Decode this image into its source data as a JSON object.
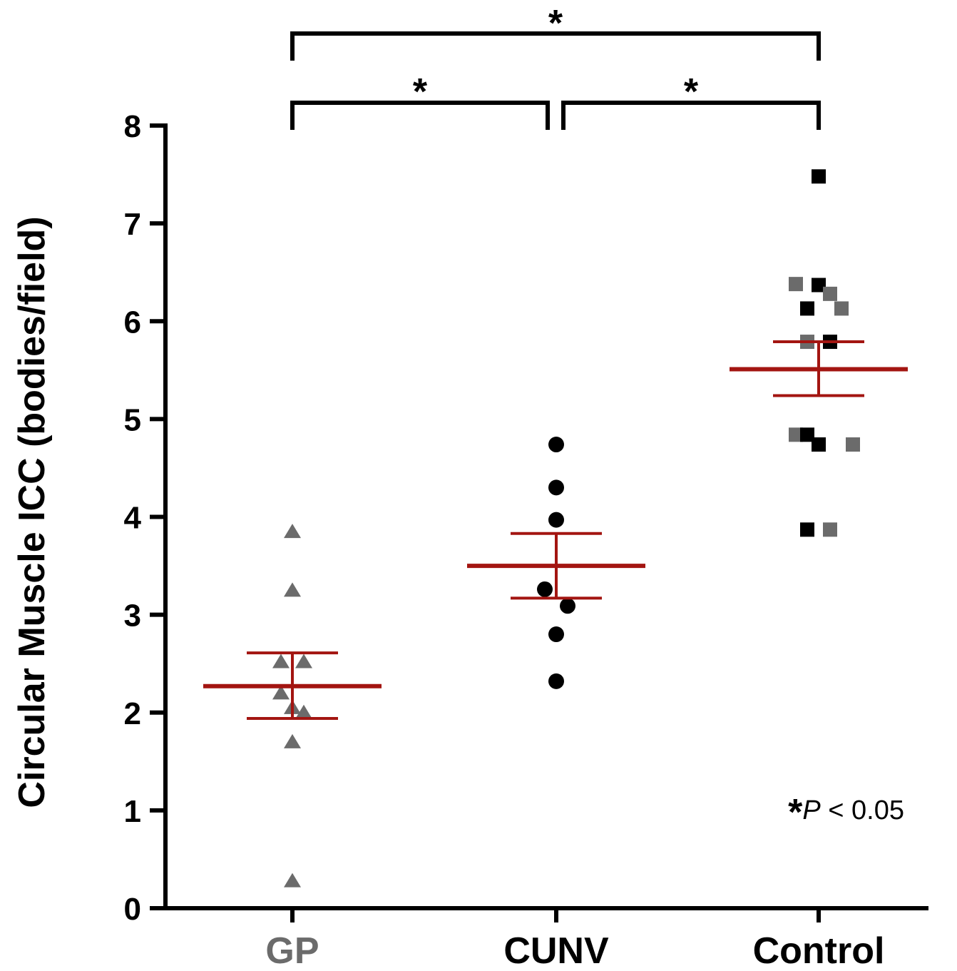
{
  "chart_data": {
    "type": "scatter",
    "ylabel": "Circular Muscle ICC (bodies/field)",
    "ylim": [
      0,
      8
    ],
    "yticks": [
      "0",
      "1",
      "2",
      "3",
      "4",
      "5",
      "6",
      "7",
      "8"
    ],
    "categories": [
      "GP",
      "CUNV",
      "Control"
    ],
    "category_colors": [
      "#6b6b6b",
      "#000000",
      "#000000"
    ],
    "series": [
      {
        "category": "GP",
        "marker": "triangle",
        "points": [
          {
            "value": 3.85,
            "color": "#6b6b6b"
          },
          {
            "value": 3.25,
            "color": "#6b6b6b"
          },
          {
            "value": 2.52,
            "color": "#6b6b6b"
          },
          {
            "value": 2.52,
            "color": "#6b6b6b"
          },
          {
            "value": 2.2,
            "color": "#6b6b6b"
          },
          {
            "value": 2.05,
            "color": "#6b6b6b"
          },
          {
            "value": 2.0,
            "color": "#6b6b6b"
          },
          {
            "value": 1.7,
            "color": "#6b6b6b"
          },
          {
            "value": 0.28,
            "color": "#6b6b6b"
          }
        ],
        "mean": 2.27,
        "sem_low": 1.94,
        "sem_high": 2.61
      },
      {
        "category": "CUNV",
        "marker": "circle",
        "points": [
          {
            "value": 4.74,
            "color": "#000000"
          },
          {
            "value": 4.3,
            "color": "#000000"
          },
          {
            "value": 3.97,
            "color": "#000000"
          },
          {
            "value": 3.26,
            "color": "#000000"
          },
          {
            "value": 3.09,
            "color": "#000000"
          },
          {
            "value": 2.8,
            "color": "#000000"
          },
          {
            "value": 2.32,
            "color": "#000000"
          }
        ],
        "mean": 3.5,
        "sem_low": 3.17,
        "sem_high": 3.83
      },
      {
        "category": "Control",
        "marker": "square",
        "points": [
          {
            "value": 7.48,
            "color": "#000000"
          },
          {
            "value": 6.38,
            "color": "#6b6b6b"
          },
          {
            "value": 6.37,
            "color": "#000000"
          },
          {
            "value": 6.28,
            "color": "#6b6b6b"
          },
          {
            "value": 6.13,
            "color": "#000000"
          },
          {
            "value": 6.13,
            "color": "#6b6b6b"
          },
          {
            "value": 5.79,
            "color": "#6b6b6b"
          },
          {
            "value": 5.79,
            "color": "#000000"
          },
          {
            "value": 4.84,
            "color": "#6b6b6b"
          },
          {
            "value": 4.84,
            "color": "#000000"
          },
          {
            "value": 4.74,
            "color": "#000000"
          },
          {
            "value": 4.74,
            "color": "#6b6b6b"
          },
          {
            "value": 3.87,
            "color": "#000000"
          },
          {
            "value": 3.87,
            "color": "#6b6b6b"
          }
        ],
        "mean": 5.51,
        "sem_low": 5.24,
        "sem_high": 5.79
      }
    ],
    "significance": [
      {
        "from": "GP",
        "to": "Control",
        "label": "*"
      },
      {
        "from": "GP",
        "to": "CUNV",
        "label": "*"
      },
      {
        "from": "CUNV",
        "to": "Control",
        "label": "*"
      }
    ],
    "annotation": {
      "star": "*",
      "text": "P < 0.05"
    },
    "colors": {
      "mean_line": "#a31511",
      "axis": "#000000",
      "gp": "#6b6b6b"
    }
  }
}
